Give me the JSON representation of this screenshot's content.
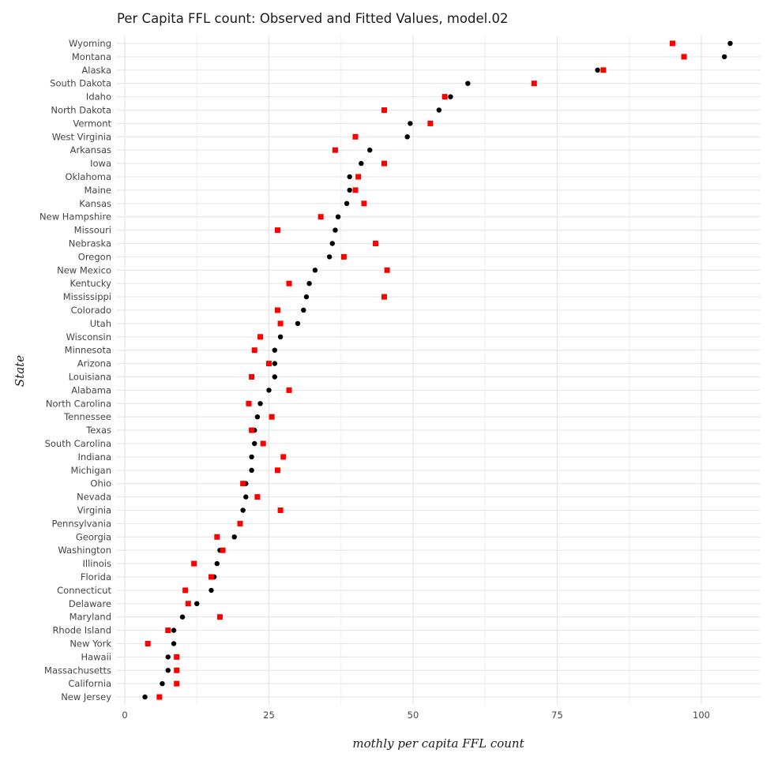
{
  "chart_data": {
    "type": "scatter",
    "title": "Per Capita FFL count: Observed and Fitted Values, model.02",
    "xlabel": "mothly per capita FFL count",
    "ylabel": "State",
    "xlim": [
      -0.5,
      110
    ],
    "xticks": [
      0,
      25,
      50,
      75,
      100
    ],
    "grid": true,
    "colors": {
      "observed": "#000000",
      "fitted": "#ff0000"
    },
    "categories": [
      "Wyoming",
      "Montana",
      "Alaska",
      "South Dakota",
      "Idaho",
      "North Dakota",
      "Vermont",
      "West Virginia",
      "Arkansas",
      "Iowa",
      "Oklahoma",
      "Maine",
      "Kansas",
      "New Hampshire",
      "Missouri",
      "Nebraska",
      "Oregon",
      "New Mexico",
      "Kentucky",
      "Mississippi",
      "Colorado",
      "Utah",
      "Wisconsin",
      "Minnesota",
      "Arizona",
      "Louisiana",
      "Alabama",
      "North Carolina",
      "Tennessee",
      "Texas",
      "South Carolina",
      "Indiana",
      "Michigan",
      "Ohio",
      "Nevada",
      "Virginia",
      "Pennsylvania",
      "Georgia",
      "Washington",
      "Illinois",
      "Florida",
      "Connecticut",
      "Delaware",
      "Maryland",
      "Rhode Island",
      "New York",
      "Hawaii",
      "Massachusetts",
      "California",
      "New Jersey"
    ],
    "series": [
      {
        "key": "observed",
        "marker": "circle",
        "values": [
          105.0,
          104.0,
          82.0,
          59.5,
          56.5,
          54.5,
          49.5,
          49.0,
          42.5,
          41.0,
          39.0,
          39.0,
          38.5,
          37.0,
          36.5,
          36.0,
          35.5,
          33.0,
          32.0,
          31.5,
          31.0,
          30.0,
          27.0,
          26.0,
          26.0,
          26.0,
          25.0,
          23.5,
          23.0,
          22.5,
          22.5,
          22.0,
          22.0,
          21.0,
          21.0,
          20.5,
          20.0,
          19.0,
          16.5,
          16.0,
          15.5,
          15.0,
          12.5,
          10.0,
          8.5,
          8.5,
          7.5,
          7.5,
          6.5,
          3.5
        ]
      },
      {
        "key": "fitted",
        "marker": "square",
        "values": [
          95.0,
          97.0,
          83.0,
          71.0,
          55.5,
          45.0,
          53.0,
          40.0,
          36.5,
          45.0,
          40.5,
          40.0,
          41.5,
          34.0,
          26.5,
          43.5,
          38.0,
          45.5,
          28.5,
          45.0,
          26.5,
          27.0,
          23.5,
          22.5,
          25.0,
          22.0,
          28.5,
          21.5,
          25.5,
          22.0,
          24.0,
          27.5,
          26.5,
          20.5,
          23.0,
          27.0,
          20.0,
          16.0,
          17.0,
          12.0,
          15.0,
          10.5,
          11.0,
          16.5,
          7.5,
          4.0,
          9.0,
          9.0,
          9.0,
          6.0
        ]
      }
    ]
  }
}
